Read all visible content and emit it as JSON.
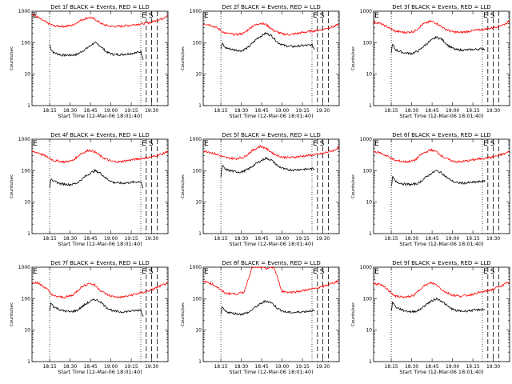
{
  "shared": {
    "xlabel": "Start Time (12-Mar-06 18:01:40)",
    "ylabel": "Counts/sec",
    "x_tick_labels": [
      "18:15",
      "18:30",
      "18:45",
      "19:00",
      "19:15",
      "19:30"
    ],
    "y_tick_labels": [
      "1",
      "10",
      "100",
      "1000"
    ],
    "series_colors": {
      "events": "#000000",
      "lld": "#ff0000"
    }
  },
  "chart_data": [
    {
      "type": "line",
      "title": "Det 1f BLACK = Events, RED = LLD",
      "xlabel": "Start Time (12-Mar-06 18:01:40)",
      "ylabel": "Counts/sec",
      "yscale": "log",
      "ylim": [
        1,
        1000
      ],
      "x_units": "minutes after 18:01:40",
      "xlim": [
        0,
        100
      ],
      "x_ticks": [
        "18:15",
        "18:30",
        "18:45",
        "19:00",
        "19:15",
        "19:30"
      ],
      "markers": [
        "E",
        "S"
      ],
      "series": [
        {
          "color": "black",
          "x": [
            13,
            14,
            16,
            22,
            28,
            33,
            40,
            46,
            50,
            55,
            60,
            66,
            72,
            77,
            80,
            82
          ],
          "y": [
            90,
            62,
            48,
            40,
            40,
            42,
            65,
            100,
            80,
            50,
            42,
            42,
            45,
            48,
            52,
            28
          ]
        },
        {
          "color": "red",
          "x": [
            0,
            4,
            10,
            16,
            24,
            30,
            36,
            42,
            46,
            52,
            58,
            64,
            70,
            76,
            82,
            88,
            92,
            96,
            100
          ],
          "y": [
            800,
            650,
            450,
            340,
            330,
            360,
            520,
            640,
            560,
            380,
            330,
            330,
            350,
            380,
            400,
            450,
            530,
            580,
            780
          ]
        }
      ],
      "vlines_dotted": [
        13,
        80
      ],
      "vlines_dashed": [
        84,
        88,
        92
      ]
    },
    {
      "type": "line",
      "title": "Det 2f BLACK = Events, RED = LLD",
      "xlabel": "Start Time (12-Mar-06 18:01:40)",
      "ylabel": "Counts/sec",
      "yscale": "log",
      "ylim": [
        1,
        1000
      ],
      "x_units": "minutes after 18:01:40",
      "xlim": [
        0,
        100
      ],
      "x_ticks": [
        "18:15",
        "18:30",
        "18:45",
        "19:00",
        "19:15",
        "19:30"
      ],
      "markers": [
        "E",
        "S"
      ],
      "series": [
        {
          "color": "black",
          "x": [
            13,
            14,
            16,
            22,
            28,
            33,
            40,
            46,
            50,
            55,
            60,
            66,
            72,
            77,
            80,
            82
          ],
          "y": [
            60,
            95,
            70,
            60,
            55,
            70,
            140,
            200,
            170,
            100,
            80,
            75,
            80,
            82,
            85,
            60
          ]
        },
        {
          "color": "red",
          "x": [
            0,
            4,
            10,
            16,
            24,
            30,
            36,
            42,
            46,
            52,
            58,
            64,
            70,
            76,
            82,
            88,
            92,
            96,
            100
          ],
          "y": [
            400,
            380,
            300,
            200,
            180,
            200,
            330,
            420,
            380,
            240,
            190,
            180,
            200,
            220,
            240,
            260,
            300,
            320,
            390
          ]
        }
      ],
      "vlines_dotted": [
        13,
        80
      ],
      "vlines_dashed": [
        84,
        88,
        92
      ]
    },
    {
      "type": "line",
      "title": "Det 3f BLACK = Events, RED = LLD",
      "xlabel": "Start Time (12-Mar-06 18:01:40)",
      "ylabel": "Counts/sec",
      "yscale": "log",
      "ylim": [
        1,
        1000
      ],
      "x_units": "minutes after 18:01:40",
      "xlim": [
        0,
        100
      ],
      "x_ticks": [
        "18:15",
        "18:30",
        "18:45",
        "19:00",
        "19:15",
        "19:30"
      ],
      "markers": [
        "E",
        "S"
      ],
      "series": [
        {
          "color": "black",
          "x": [
            13,
            14,
            16,
            22,
            28,
            33,
            40,
            46,
            50,
            55,
            60,
            66,
            72,
            77,
            80,
            82
          ],
          "y": [
            50,
            90,
            60,
            48,
            45,
            55,
            100,
            150,
            130,
            80,
            60,
            58,
            60,
            62,
            65,
            62
          ]
        },
        {
          "color": "red",
          "x": [
            0,
            4,
            10,
            16,
            24,
            30,
            36,
            42,
            46,
            52,
            58,
            64,
            70,
            76,
            82,
            88,
            92,
            96,
            100
          ],
          "y": [
            450,
            420,
            320,
            230,
            210,
            230,
            380,
            480,
            420,
            280,
            220,
            210,
            230,
            250,
            270,
            300,
            340,
            380,
            480
          ]
        }
      ],
      "vlines_dotted": [
        13,
        80
      ],
      "vlines_dashed": [
        84,
        88,
        92
      ]
    },
    {
      "type": "line",
      "title": "Det 4f BLACK = Events, RED = LLD",
      "xlabel": "Start Time (12-Mar-06 18:01:40)",
      "ylabel": "Counts/sec",
      "yscale": "log",
      "ylim": [
        1,
        1000
      ],
      "x_units": "minutes after 18:01:40",
      "xlim": [
        0,
        100
      ],
      "x_ticks": [
        "18:15",
        "18:30",
        "18:45",
        "19:00",
        "19:15",
        "19:30"
      ],
      "markers": [
        "E",
        "S"
      ],
      "series": [
        {
          "color": "black",
          "x": [
            13,
            14,
            16,
            22,
            28,
            33,
            40,
            46,
            50,
            55,
            60,
            66,
            72,
            77,
            80,
            82
          ],
          "y": [
            30,
            60,
            45,
            38,
            36,
            40,
            70,
            100,
            85,
            55,
            42,
            40,
            42,
            44,
            46,
            25
          ]
        },
        {
          "color": "red",
          "x": [
            0,
            4,
            10,
            16,
            24,
            30,
            36,
            42,
            46,
            52,
            58,
            64,
            70,
            76,
            82,
            88,
            92,
            96,
            100
          ],
          "y": [
            400,
            380,
            290,
            210,
            190,
            210,
            350,
            450,
            400,
            260,
            200,
            190,
            210,
            230,
            250,
            270,
            310,
            340,
            420
          ]
        }
      ],
      "vlines_dotted": [
        13,
        80
      ],
      "vlines_dashed": [
        84,
        88,
        92
      ]
    },
    {
      "type": "line",
      "title": "Det 5f BLACK = Events, RED = LLD",
      "xlabel": "Start Time (12-Mar-06 18:01:40)",
      "ylabel": "Counts/sec",
      "yscale": "log",
      "ylim": [
        1,
        1000
      ],
      "x_units": "minutes after 18:01:40",
      "xlim": [
        0,
        100
      ],
      "x_ticks": [
        "18:15",
        "18:30",
        "18:45",
        "19:00",
        "19:15",
        "19:30"
      ],
      "markers": [
        "E",
        "S"
      ],
      "series": [
        {
          "color": "black",
          "x": [
            13,
            14,
            16,
            22,
            28,
            33,
            40,
            46,
            50,
            55,
            60,
            66,
            72,
            77,
            80,
            82
          ],
          "y": [
            60,
            150,
            110,
            95,
            90,
            110,
            180,
            250,
            220,
            140,
            110,
            105,
            110,
            112,
            115,
            110
          ]
        },
        {
          "color": "red",
          "x": [
            0,
            4,
            10,
            16,
            24,
            30,
            36,
            42,
            46,
            52,
            58,
            64,
            70,
            76,
            82,
            88,
            92,
            96,
            100
          ],
          "y": [
            420,
            400,
            330,
            260,
            240,
            270,
            430,
            600,
            520,
            340,
            270,
            260,
            280,
            300,
            320,
            350,
            400,
            440,
            560
          ]
        }
      ],
      "vlines_dotted": [
        13,
        80
      ],
      "vlines_dashed": [
        84,
        88,
        92
      ]
    },
    {
      "type": "line",
      "title": "Det 6f BLACK = Events, RED = LLD",
      "xlabel": "Start Time (12-Mar-06 18:01:40)",
      "ylabel": "Counts/sec",
      "yscale": "log",
      "ylim": [
        1,
        1000
      ],
      "x_units": "minutes after 18:01:40",
      "xlim": [
        0,
        100
      ],
      "x_ticks": [
        "18:15",
        "18:30",
        "18:45",
        "19:00",
        "19:15",
        "19:30"
      ],
      "markers": [
        "E",
        "S"
      ],
      "series": [
        {
          "color": "black",
          "x": [
            13,
            14,
            16,
            22,
            28,
            33,
            40,
            46,
            50,
            55,
            60,
            66,
            72,
            77,
            80,
            82
          ],
          "y": [
            30,
            65,
            45,
            38,
            36,
            40,
            70,
            100,
            85,
            55,
            42,
            40,
            42,
            44,
            46,
            45
          ]
        },
        {
          "color": "red",
          "x": [
            0,
            4,
            10,
            16,
            24,
            30,
            36,
            42,
            46,
            52,
            58,
            64,
            70,
            76,
            82,
            88,
            92,
            96,
            100
          ],
          "y": [
            400,
            380,
            290,
            210,
            190,
            210,
            350,
            460,
            400,
            260,
            200,
            190,
            210,
            230,
            250,
            270,
            310,
            340,
            410
          ]
        }
      ],
      "vlines_dotted": [
        13,
        80
      ],
      "vlines_dashed": [
        84,
        88,
        92
      ]
    },
    {
      "type": "line",
      "title": "Det 7f BLACK = Events, RED = LLD",
      "xlabel": "Start Time (12-Mar-06 18:01:40)",
      "ylabel": "Counts/sec",
      "yscale": "log",
      "ylim": [
        1,
        1000
      ],
      "x_units": "minutes after 18:01:40",
      "xlim": [
        0,
        100
      ],
      "x_ticks": [
        "18:15",
        "18:30",
        "18:45",
        "19:00",
        "19:15",
        "19:30"
      ],
      "markers": [
        "E",
        "S"
      ],
      "series": [
        {
          "color": "black",
          "x": [
            13,
            14,
            16,
            22,
            28,
            33,
            40,
            46,
            50,
            55,
            60,
            66,
            72,
            77,
            80,
            82
          ],
          "y": [
            40,
            75,
            55,
            42,
            38,
            42,
            70,
            95,
            82,
            52,
            40,
            38,
            40,
            42,
            44,
            25
          ]
        },
        {
          "color": "red",
          "x": [
            0,
            4,
            10,
            16,
            24,
            30,
            36,
            42,
            46,
            52,
            58,
            64,
            70,
            76,
            82,
            88,
            92,
            96,
            100
          ],
          "y": [
            340,
            320,
            220,
            120,
            110,
            130,
            230,
            310,
            270,
            160,
            120,
            110,
            120,
            140,
            160,
            190,
            230,
            270,
            320
          ]
        }
      ],
      "vlines_dotted": [
        13,
        80
      ],
      "vlines_dashed": [
        84,
        88,
        92
      ]
    },
    {
      "type": "line",
      "title": "Det 8f BLACK = Events, RED = LLD",
      "xlabel": "Start Time (12-Mar-06 18:01:40)",
      "ylabel": "Counts/sec",
      "yscale": "log",
      "ylim": [
        1,
        1000
      ],
      "x_units": "minutes after 18:01:40",
      "xlim": [
        0,
        100
      ],
      "x_ticks": [
        "18:15",
        "18:30",
        "18:45",
        "19:00",
        "19:15",
        "19:30"
      ],
      "markers": [
        "E",
        "S"
      ],
      "series": [
        {
          "color": "black",
          "x": [
            13,
            14,
            16,
            22,
            28,
            33,
            40,
            46,
            50,
            55,
            60,
            66,
            72,
            77,
            80,
            82
          ],
          "y": [
            30,
            55,
            40,
            34,
            32,
            36,
            60,
            85,
            75,
            48,
            38,
            36,
            38,
            40,
            42,
            40
          ]
        },
        {
          "color": "red",
          "x": [
            0,
            4,
            10,
            16,
            24,
            30,
            36,
            42,
            46,
            52,
            58,
            64,
            70,
            76,
            82,
            88,
            92,
            96,
            100
          ],
          "y": [
            350,
            330,
            240,
            150,
            140,
            160,
            1000,
            1000,
            900,
            1000,
            170,
            160,
            170,
            190,
            210,
            240,
            280,
            320,
            380
          ]
        }
      ],
      "vlines_dotted": [
        13,
        80
      ],
      "vlines_dashed": [
        84,
        88,
        92
      ]
    },
    {
      "type": "line",
      "title": "Det 9f BLACK = Events, RED = LLD",
      "xlabel": "Start Time (12-Mar-06 18:01:40)",
      "ylabel": "Counts/sec",
      "yscale": "log",
      "ylim": [
        1,
        1000
      ],
      "x_units": "minutes after 18:01:40",
      "xlim": [
        0,
        100
      ],
      "x_ticks": [
        "18:15",
        "18:30",
        "18:45",
        "19:00",
        "19:15",
        "19:30"
      ],
      "markers": [
        "E",
        "S"
      ],
      "series": [
        {
          "color": "black",
          "x": [
            13,
            14,
            16,
            22,
            28,
            33,
            40,
            46,
            50,
            55,
            60,
            66,
            72,
            77,
            80,
            82
          ],
          "y": [
            40,
            80,
            55,
            42,
            38,
            42,
            72,
            100,
            85,
            55,
            42,
            40,
            42,
            44,
            46,
            45
          ]
        },
        {
          "color": "red",
          "x": [
            0,
            4,
            10,
            16,
            24,
            30,
            36,
            42,
            46,
            52,
            58,
            64,
            70,
            76,
            82,
            88,
            92,
            96,
            100
          ],
          "y": [
            300,
            290,
            200,
            120,
            110,
            130,
            240,
            320,
            280,
            170,
            130,
            120,
            130,
            150,
            170,
            200,
            240,
            280,
            340
          ]
        }
      ],
      "vlines_dotted": [
        13,
        80
      ],
      "vlines_dashed": [
        84,
        88,
        92
      ]
    }
  ]
}
